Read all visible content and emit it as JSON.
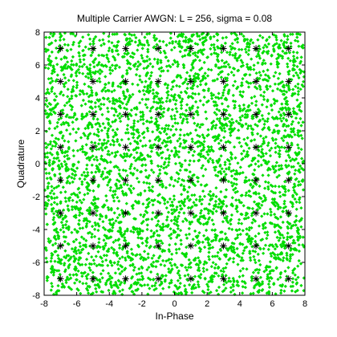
{
  "chart_data": {
    "type": "scatter",
    "title": "Multiple Carrier AWGN: L = 256, sigma = 0.08",
    "xlabel": "In-Phase",
    "ylabel": "Quadrature",
    "xlim": [
      -8,
      8
    ],
    "ylim": [
      -8,
      8
    ],
    "xticks": [
      -8,
      -6,
      -4,
      -2,
      0,
      2,
      4,
      6,
      8
    ],
    "yticks": [
      -8,
      -6,
      -4,
      -2,
      0,
      2,
      4,
      6,
      8
    ],
    "grid": false,
    "series": [
      {
        "kind": "received",
        "marker": "diamond",
        "color": "#00dd00",
        "description_points": "dense uniform cloud of received points covering the full axis area",
        "count_estimate": 4000
      },
      {
        "kind": "reference",
        "marker": "asterisk",
        "color": "#000000",
        "grid_values": [
          -7,
          -5,
          -3,
          -1,
          1,
          3,
          5,
          7
        ]
      }
    ]
  }
}
